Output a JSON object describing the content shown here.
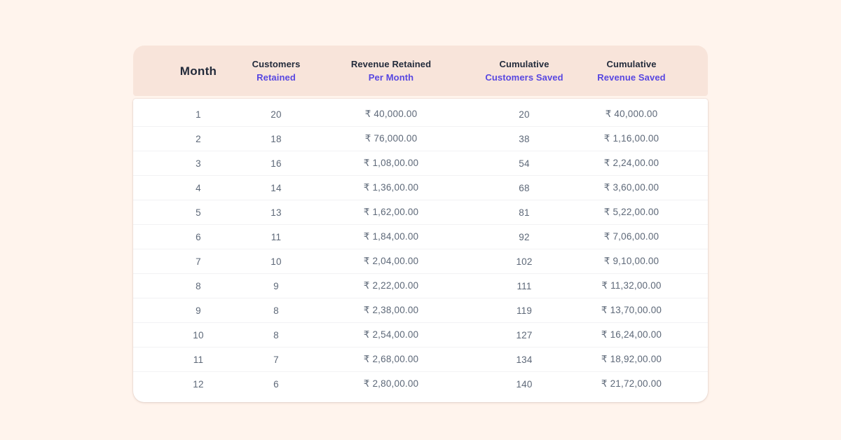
{
  "chart_data": {
    "type": "table",
    "columns": [
      {
        "line1": "Month",
        "line2": ""
      },
      {
        "line1": "Customers",
        "line2": "Retained"
      },
      {
        "line1": "Revenue Retained",
        "line2": "Per Month"
      },
      {
        "line1": "Cumulative",
        "line2": "Customers Saved"
      },
      {
        "line1": "Cumulative",
        "line2": "Revenue Saved"
      }
    ],
    "rows": [
      [
        "1",
        "20",
        "₹ 40,000.00",
        "20",
        "₹ 40,000.00"
      ],
      [
        "2",
        "18",
        "₹ 76,000.00",
        "38",
        "₹ 1,16,00.00"
      ],
      [
        "3",
        "16",
        "₹ 1,08,00.00",
        "54",
        "₹ 2,24,00.00"
      ],
      [
        "4",
        "14",
        "₹ 1,36,00.00",
        "68",
        "₹ 3,60,00.00"
      ],
      [
        "5",
        "13",
        "₹ 1,62,00.00",
        "81",
        "₹ 5,22,00.00"
      ],
      [
        "6",
        "11",
        "₹ 1,84,00.00",
        "92",
        "₹ 7,06,00.00"
      ],
      [
        "7",
        "10",
        "₹ 2,04,00.00",
        "102",
        "₹ 9,10,00.00"
      ],
      [
        "8",
        "9",
        "₹ 2,22,00.00",
        "111",
        "₹ 11,32,00.00"
      ],
      [
        "9",
        "8",
        "₹ 2,38,00.00",
        "119",
        "₹ 13,70,00.00"
      ],
      [
        "10",
        "8",
        "₹ 2,54,00.00",
        "127",
        "₹ 16,24,00.00"
      ],
      [
        "11",
        "7",
        "₹ 2,68,00.00",
        "134",
        "₹ 18,92,00.00"
      ],
      [
        "12",
        "6",
        "₹ 2,80,00.00",
        "140",
        "₹ 21,72,00.00"
      ]
    ]
  },
  "colors": {
    "page_background": "#FFF4ED",
    "header_background": "#F8E4DA",
    "accent_purple": "#5847E1",
    "heading_text": "#232B3B",
    "cell_text": "#5D6878",
    "row_divider": "#F2F2F4",
    "card_background": "#FFFFFF"
  }
}
